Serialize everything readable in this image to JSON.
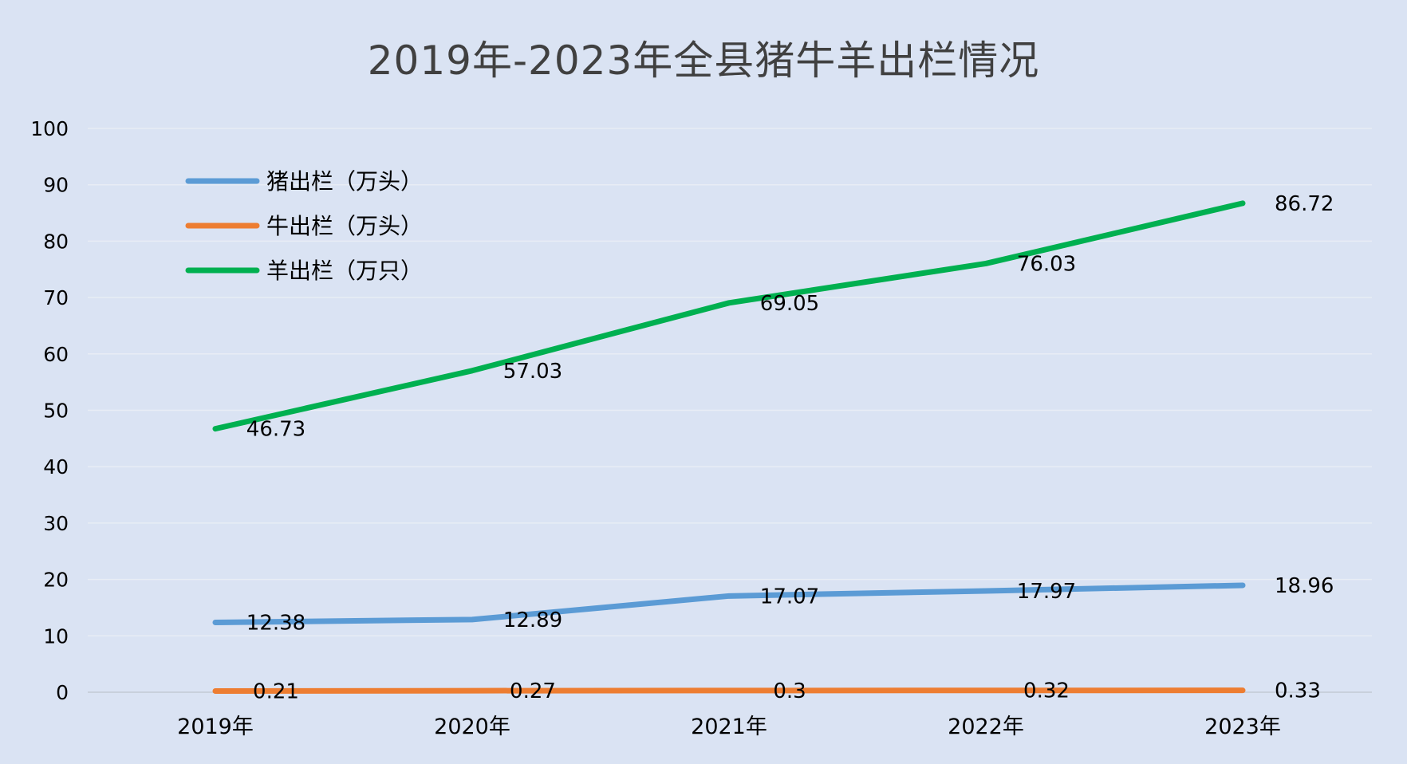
{
  "chart_data": {
    "type": "line",
    "title": "2019年-2023年全县猪牛羊出栏情况",
    "xlabel": "",
    "ylabel": "",
    "categories": [
      "2019年",
      "2020年",
      "2021年",
      "2022年",
      "2023年"
    ],
    "ylim": [
      0,
      100
    ],
    "yticks": [
      0,
      10,
      20,
      30,
      40,
      50,
      60,
      70,
      80,
      90,
      100
    ],
    "grid": true,
    "legend_position": "top-left",
    "series": [
      {
        "name": "猪出栏（万头）",
        "color": "#5b9bd5",
        "values": [
          12.38,
          12.89,
          17.07,
          17.97,
          18.96
        ],
        "labels": [
          "12.38",
          "12.89",
          "17.07",
          "17.97",
          "18.96"
        ]
      },
      {
        "name": "牛出栏（万头）",
        "color": "#ed7d31",
        "values": [
          0.21,
          0.27,
          0.3,
          0.32,
          0.33
        ],
        "labels": [
          "0.21",
          "0.27",
          "0.3",
          "0.32",
          "0.33"
        ]
      },
      {
        "name": "羊出栏（万只）",
        "color": "#00b050",
        "values": [
          46.73,
          57.03,
          69.05,
          76.03,
          86.72
        ],
        "labels": [
          "46.73",
          "57.03",
          "69.05",
          "76.03",
          "86.72"
        ]
      }
    ]
  }
}
